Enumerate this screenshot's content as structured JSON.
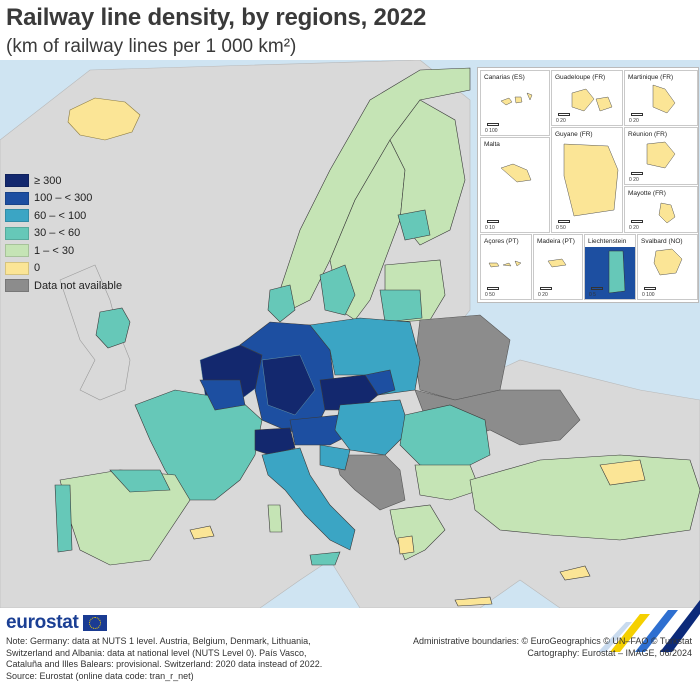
{
  "title": "Railway line density, by regions, 2022",
  "subtitle": "(km of railway lines per 1 000 km²)",
  "legend": [
    {
      "label": "≥ 300",
      "color": "#13286e"
    },
    {
      "label": "100 – < 300",
      "color": "#1d4fa1"
    },
    {
      "label": "60 – < 100",
      "color": "#3ba5c4"
    },
    {
      "label": "30 – < 60",
      "color": "#66c8b8"
    },
    {
      "label": "1 – < 30",
      "color": "#c5e4b5"
    },
    {
      "label": "0",
      "color": "#fbe596"
    },
    {
      "label": "Data not available",
      "color": "#8c8c8c"
    }
  ],
  "colors": {
    "sea": "#cfe4f2",
    "non_covered": "#d9d9d9",
    "borders": "#3a3a3a"
  },
  "insets": [
    {
      "name": "Canarias (ES)",
      "scale": "0   100"
    },
    {
      "name": "Guadeloupe (FR)",
      "scale": "0   20"
    },
    {
      "name": "Martinique (FR)",
      "scale": "0   20"
    },
    {
      "name": "Réunion (FR)",
      "scale": "0   20"
    },
    {
      "name": "Malta",
      "scale": "0   10"
    },
    {
      "name": "Guyane (FR)",
      "scale": "0   50"
    },
    {
      "name": "Mayotte (FR)",
      "scale": "0   20"
    },
    {
      "name": "Açores (PT)",
      "scale": "0   50"
    },
    {
      "name": "Madeira (PT)",
      "scale": "0   20"
    },
    {
      "name": "Liechtenstein",
      "scale": "0   5"
    },
    {
      "name": "Svalbard (NO)",
      "scale": "0   100"
    }
  ],
  "footer": {
    "logo": "eurostat",
    "note_lines": [
      "Note: Germany: data at NUTS 1 level. Austria, Belgium, Denmark, Lithuania,",
      "Switzerland and Albania: data at national level (NUTS Level 0). País Vasco,",
      "Cataluña and Illes Balears: provisional. Switzerland: 2020 data instead of 2022.",
      "Source: Eurostat (online data code: tran_r_net)"
    ],
    "credit_lines": [
      "Administrative boundaries: © EuroGeographics © UN–FAO © Turkstat",
      "Cartography: Eurostat – IMAGE, 06/2024"
    ]
  }
}
